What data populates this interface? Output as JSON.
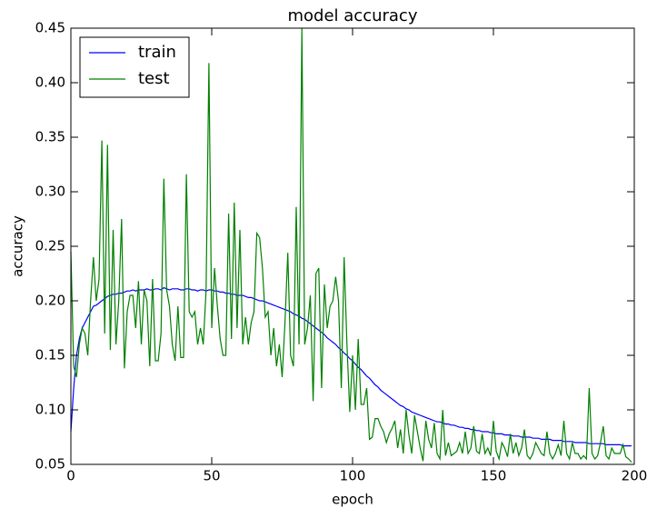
{
  "chart_data": {
    "type": "line",
    "title": "model accuracy",
    "x_label": "epoch",
    "y_label": "accuracy",
    "x": [
      0,
      1,
      2,
      3,
      4,
      5,
      6,
      7,
      8,
      9,
      10,
      11,
      12,
      13,
      14,
      15,
      16,
      17,
      18,
      19,
      20,
      21,
      22,
      23,
      24,
      25,
      26,
      27,
      28,
      29,
      30,
      31,
      32,
      33,
      34,
      35,
      36,
      37,
      38,
      39,
      40,
      41,
      42,
      43,
      44,
      45,
      46,
      47,
      48,
      49,
      50,
      51,
      52,
      53,
      54,
      55,
      56,
      57,
      58,
      59,
      60,
      61,
      62,
      63,
      64,
      65,
      66,
      67,
      68,
      69,
      70,
      71,
      72,
      73,
      74,
      75,
      76,
      77,
      78,
      79,
      80,
      81,
      82,
      83,
      84,
      85,
      86,
      87,
      88,
      89,
      90,
      91,
      92,
      93,
      94,
      95,
      96,
      97,
      98,
      99,
      100,
      101,
      102,
      103,
      104,
      105,
      106,
      107,
      108,
      109,
      110,
      111,
      112,
      113,
      114,
      115,
      116,
      117,
      118,
      119,
      120,
      121,
      122,
      123,
      124,
      125,
      126,
      127,
      128,
      129,
      130,
      131,
      132,
      133,
      134,
      135,
      136,
      137,
      138,
      139,
      140,
      141,
      142,
      143,
      144,
      145,
      146,
      147,
      148,
      149,
      150,
      151,
      152,
      153,
      154,
      155,
      156,
      157,
      158,
      159,
      160,
      161,
      162,
      163,
      164,
      165,
      166,
      167,
      168,
      169,
      170,
      171,
      172,
      173,
      174,
      175,
      176,
      177,
      178,
      179,
      180,
      181,
      182,
      183,
      184,
      185,
      186,
      187,
      188,
      189,
      190,
      191,
      192,
      193,
      194,
      195,
      196,
      197,
      198,
      199
    ],
    "series": [
      {
        "name": "train",
        "color": "#0000ff",
        "values": [
          0.08,
          0.12,
          0.15,
          0.165,
          0.175,
          0.18,
          0.185,
          0.19,
          0.195,
          0.196,
          0.198,
          0.2,
          0.202,
          0.204,
          0.205,
          0.206,
          0.206,
          0.207,
          0.207,
          0.208,
          0.209,
          0.209,
          0.21,
          0.209,
          0.21,
          0.21,
          0.21,
          0.211,
          0.21,
          0.21,
          0.211,
          0.211,
          0.21,
          0.212,
          0.211,
          0.21,
          0.211,
          0.211,
          0.211,
          0.21,
          0.21,
          0.211,
          0.211,
          0.21,
          0.21,
          0.209,
          0.21,
          0.21,
          0.209,
          0.21,
          0.21,
          0.209,
          0.209,
          0.208,
          0.208,
          0.207,
          0.207,
          0.206,
          0.206,
          0.205,
          0.205,
          0.205,
          0.204,
          0.203,
          0.203,
          0.202,
          0.201,
          0.2,
          0.2,
          0.199,
          0.198,
          0.197,
          0.196,
          0.195,
          0.194,
          0.193,
          0.192,
          0.191,
          0.19,
          0.188,
          0.187,
          0.186,
          0.184,
          0.183,
          0.181,
          0.179,
          0.177,
          0.175,
          0.173,
          0.171,
          0.169,
          0.166,
          0.164,
          0.162,
          0.16,
          0.157,
          0.155,
          0.152,
          0.15,
          0.147,
          0.145,
          0.142,
          0.139,
          0.137,
          0.134,
          0.131,
          0.129,
          0.126,
          0.123,
          0.121,
          0.118,
          0.116,
          0.114,
          0.112,
          0.11,
          0.108,
          0.106,
          0.104,
          0.103,
          0.101,
          0.1,
          0.098,
          0.097,
          0.096,
          0.095,
          0.094,
          0.093,
          0.092,
          0.091,
          0.09,
          0.089,
          0.089,
          0.088,
          0.087,
          0.087,
          0.086,
          0.086,
          0.085,
          0.084,
          0.084,
          0.083,
          0.083,
          0.082,
          0.082,
          0.081,
          0.081,
          0.08,
          0.08,
          0.08,
          0.079,
          0.079,
          0.078,
          0.078,
          0.078,
          0.077,
          0.077,
          0.077,
          0.076,
          0.076,
          0.076,
          0.075,
          0.075,
          0.075,
          0.075,
          0.074,
          0.074,
          0.074,
          0.073,
          0.073,
          0.073,
          0.073,
          0.072,
          0.072,
          0.072,
          0.072,
          0.071,
          0.071,
          0.071,
          0.071,
          0.07,
          0.07,
          0.07,
          0.07,
          0.07,
          0.069,
          0.069,
          0.069,
          0.069,
          0.069,
          0.069,
          0.068,
          0.068,
          0.068,
          0.068,
          0.068,
          0.068,
          0.067,
          0.067,
          0.067,
          0.067
        ]
      },
      {
        "name": "test",
        "color": "#008000",
        "values": [
          0.245,
          0.14,
          0.13,
          0.16,
          0.175,
          0.17,
          0.15,
          0.2,
          0.24,
          0.2,
          0.22,
          0.347,
          0.17,
          0.343,
          0.155,
          0.265,
          0.16,
          0.2,
          0.275,
          0.138,
          0.19,
          0.205,
          0.205,
          0.175,
          0.218,
          0.16,
          0.21,
          0.2,
          0.14,
          0.22,
          0.145,
          0.145,
          0.17,
          0.312,
          0.21,
          0.195,
          0.16,
          0.145,
          0.195,
          0.148,
          0.148,
          0.316,
          0.19,
          0.185,
          0.19,
          0.16,
          0.175,
          0.16,
          0.21,
          0.418,
          0.175,
          0.23,
          0.195,
          0.165,
          0.15,
          0.15,
          0.28,
          0.165,
          0.29,
          0.175,
          0.265,
          0.16,
          0.185,
          0.16,
          0.18,
          0.19,
          0.262,
          0.258,
          0.23,
          0.185,
          0.19,
          0.15,
          0.175,
          0.14,
          0.16,
          0.13,
          0.18,
          0.244,
          0.15,
          0.14,
          0.286,
          0.16,
          0.45,
          0.16,
          0.175,
          0.205,
          0.108,
          0.225,
          0.23,
          0.12,
          0.215,
          0.175,
          0.195,
          0.2,
          0.222,
          0.2,
          0.12,
          0.24,
          0.16,
          0.098,
          0.15,
          0.1,
          0.165,
          0.105,
          0.105,
          0.12,
          0.073,
          0.075,
          0.092,
          0.092,
          0.085,
          0.08,
          0.07,
          0.078,
          0.083,
          0.09,
          0.065,
          0.082,
          0.06,
          0.1,
          0.077,
          0.06,
          0.095,
          0.08,
          0.065,
          0.053,
          0.09,
          0.073,
          0.065,
          0.088,
          0.06,
          0.055,
          0.1,
          0.058,
          0.07,
          0.058,
          0.06,
          0.062,
          0.07,
          0.06,
          0.08,
          0.06,
          0.065,
          0.085,
          0.062,
          0.06,
          0.078,
          0.06,
          0.065,
          0.058,
          0.09,
          0.062,
          0.055,
          0.07,
          0.065,
          0.057,
          0.078,
          0.06,
          0.07,
          0.058,
          0.065,
          0.082,
          0.058,
          0.055,
          0.06,
          0.07,
          0.065,
          0.06,
          0.058,
          0.08,
          0.06,
          0.055,
          0.06,
          0.068,
          0.058,
          0.09,
          0.06,
          0.055,
          0.07,
          0.06,
          0.06,
          0.055,
          0.058,
          0.055,
          0.12,
          0.06,
          0.055,
          0.058,
          0.07,
          0.085,
          0.058,
          0.055,
          0.065,
          0.06,
          0.06,
          0.06,
          0.068,
          0.057,
          0.055,
          0.052
        ]
      }
    ],
    "xlim": [
      0,
      200
    ],
    "xticks": [
      0,
      50,
      100,
      150,
      200
    ],
    "ylim": [
      0.05,
      0.45
    ],
    "yticks": [
      0.05,
      {
        "value": 0.1,
        "label": "0.10"
      },
      0.15,
      {
        "value": 0.2,
        "label": "0.20"
      },
      0.25,
      {
        "value": 0.3,
        "label": "0.30"
      },
      0.35,
      {
        "value": 0.4,
        "label": "0.40"
      },
      0.45
    ],
    "legend": "upper left",
    "grid": false
  }
}
